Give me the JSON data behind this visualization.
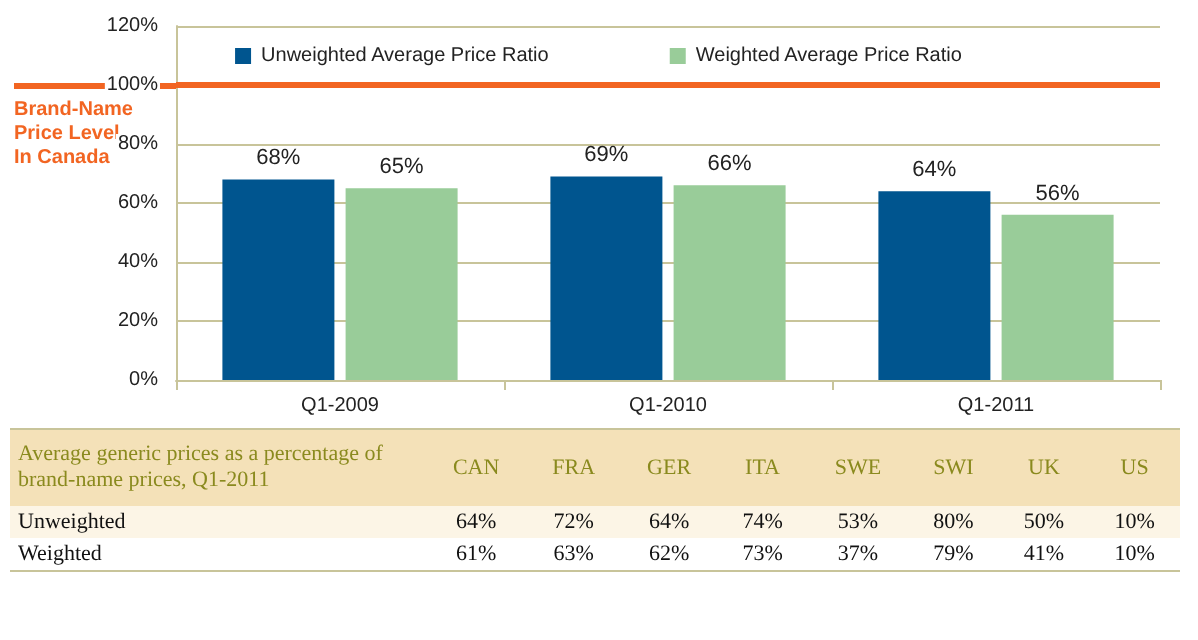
{
  "chart_data": [
    {
      "type": "bar",
      "categories": [
        "Q1-2009",
        "Q1-2010",
        "Q1-2011"
      ],
      "series": [
        {
          "name": "Unweighted Average Price Ratio",
          "color": "#00558f",
          "values": [
            68,
            69,
            64
          ],
          "value_labels": [
            "68%",
            "69%",
            "64%"
          ]
        },
        {
          "name": "Weighted Average Price Ratio",
          "color": "#99cc99",
          "values": [
            65,
            66,
            56
          ],
          "value_labels": [
            "65%",
            "66%",
            "56%"
          ]
        }
      ],
      "ylim": [
        0,
        120
      ],
      "yticks": [
        {
          "value": 0,
          "label": "0%"
        },
        {
          "value": 20,
          "label": "20%"
        },
        {
          "value": 40,
          "label": "40%"
        },
        {
          "value": 60,
          "label": "60%"
        },
        {
          "value": 80,
          "label": "80%"
        },
        {
          "value": 100,
          "label": "100%"
        },
        {
          "value": 120,
          "label": "120%"
        }
      ],
      "grid": "y",
      "legend": "top",
      "ref_lines": [
        {
          "axis": "y",
          "value": 100,
          "label": "Brand-Name Price Level In Canada",
          "color": "#f26522"
        }
      ]
    },
    {
      "type": "other",
      "title": "Average generic prices as a percentage of brand-name prices, Q1-2011",
      "categories": [
        "CAN",
        "FRA",
        "GER",
        "ITA",
        "SWE",
        "SWI",
        "UK",
        "US"
      ],
      "series": [
        {
          "name": "Unweighted",
          "values": [
            64,
            72,
            64,
            74,
            53,
            80,
            50,
            10
          ],
          "value_labels": [
            "64%",
            "72%",
            "64%",
            "74%",
            "53%",
            "80%",
            "50%",
            "10%"
          ]
        },
        {
          "name": "Weighted",
          "values": [
            61,
            63,
            62,
            73,
            37,
            79,
            41,
            10
          ],
          "value_labels": [
            "61%",
            "63%",
            "62%",
            "73%",
            "37%",
            "79%",
            "41%",
            "10%"
          ]
        }
      ]
    }
  ]
}
